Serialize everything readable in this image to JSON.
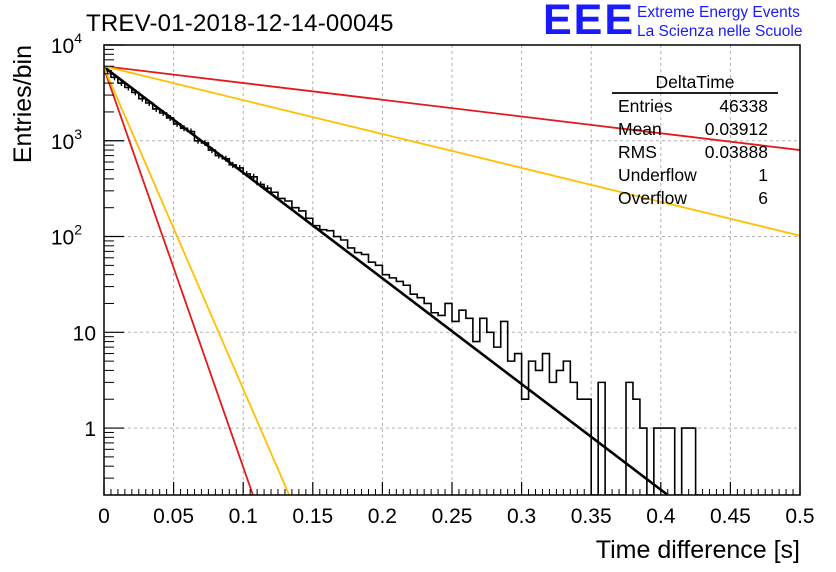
{
  "title": "TREV-01-2018-12-14-00045",
  "logo": {
    "mark": "EEE",
    "line1": "Extreme Energy Events",
    "line2": "La Scienza nelle Scuole",
    "color": "#1a1aff"
  },
  "stats_box": {
    "name": "DeltaTime",
    "rows": [
      {
        "label": "Entries",
        "value": "46338"
      },
      {
        "label": "Mean",
        "value": "0.03912"
      },
      {
        "label": "RMS",
        "value": "0.03888"
      },
      {
        "label": "Underflow",
        "value": "1"
      },
      {
        "label": "Overflow",
        "value": "6"
      }
    ]
  },
  "chart_data": {
    "type": "line",
    "xlabel": "Time difference [s]",
    "ylabel": "Entries/bin",
    "xlim": [
      0,
      0.5
    ],
    "ylim": [
      0.2,
      10000
    ],
    "yscale": "log",
    "grid": true,
    "x_ticks": [
      "0",
      "0.05",
      "0.1",
      "0.15",
      "0.2",
      "0.25",
      "0.3",
      "0.35",
      "0.4",
      "0.45",
      "0.5"
    ],
    "y_ticks": [
      {
        "value": 1,
        "base": "1",
        "exp": ""
      },
      {
        "value": 10,
        "base": "10",
        "exp": ""
      },
      {
        "value": 100,
        "base": "10",
        "exp": "2"
      },
      {
        "value": 1000,
        "base": "10",
        "exp": "3"
      },
      {
        "value": 10000,
        "base": "10",
        "exp": "4"
      }
    ],
    "histogram": {
      "bin_width": 0.005,
      "color": "#000000",
      "counts": [
        5400,
        4600,
        4000,
        3600,
        3200,
        2750,
        2480,
        2150,
        1950,
        1730,
        1500,
        1350,
        1250,
        1000,
        950,
        800,
        700,
        650,
        560,
        520,
        450,
        420,
        350,
        320,
        290,
        250,
        235,
        200,
        185,
        155,
        130,
        118,
        115,
        100,
        92,
        76,
        68,
        65,
        54,
        50,
        40,
        37,
        34,
        31,
        25,
        23,
        20,
        16,
        15,
        20,
        13,
        17,
        14,
        8,
        14,
        10,
        7,
        13,
        5,
        6,
        2,
        5,
        4,
        6,
        3,
        4,
        5,
        3,
        2,
        2,
        0,
        3,
        0,
        0,
        0,
        3,
        2,
        1,
        0,
        1,
        1,
        1,
        0,
        1,
        1,
        0
      ],
      "marker_bins": 24
    },
    "fit_lines": [
      {
        "color": "#000000",
        "x": [
          0,
          0.405
        ],
        "y": [
          5900,
          0.2
        ],
        "width": 2.6
      },
      {
        "color": "#e31a1c",
        "x": [
          0,
          0.5
        ],
        "y": [
          6000,
          800
        ],
        "width": 1.8
      },
      {
        "color": "#e31a1c",
        "x": [
          0,
          0.107
        ],
        "y": [
          5700,
          0.2
        ],
        "width": 1.8
      },
      {
        "color": "#ffc000",
        "x": [
          0,
          0.5
        ],
        "y": [
          6000,
          102
        ],
        "width": 1.8
      },
      {
        "color": "#ffc000",
        "x": [
          0,
          0.133
        ],
        "y": [
          5800,
          0.2
        ],
        "width": 1.8
      }
    ]
  }
}
